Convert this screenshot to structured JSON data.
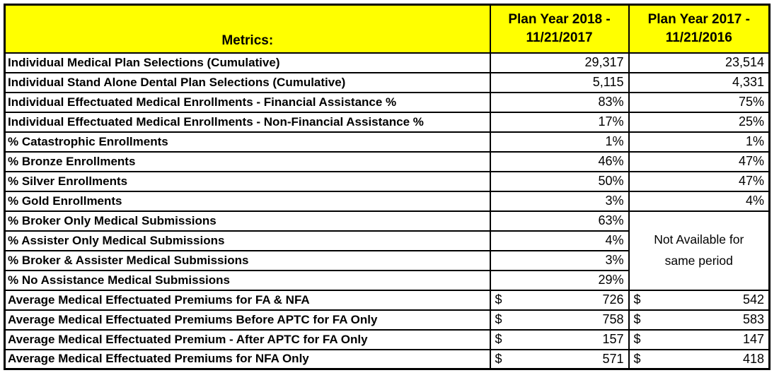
{
  "colors": {
    "header_bg": "#ffff00",
    "border": "#000000",
    "text": "#000000",
    "cell_bg": "#ffffff"
  },
  "table": {
    "currency_symbol": "$",
    "header": {
      "metrics": "Metrics:",
      "col_2018": "Plan Year 2018 -\n11/21/2017",
      "col_2017": "Plan Year 2017 -\n11/21/2016"
    },
    "merged_note": "Not Available for same period",
    "rows": [
      {
        "label": "Individual Medical Plan Selections (Cumulative)",
        "py2018": "29,317",
        "py2017": "23,514"
      },
      {
        "label": "Individual Stand Alone Dental Plan Selections (Cumulative)",
        "py2018": "5,115",
        "py2017": "4,331"
      },
      {
        "label": "Individual Effectuated Medical Enrollments - Financial Assistance %",
        "py2018": "83%",
        "py2017": "75%"
      },
      {
        "label": "Individual Effectuated Medical Enrollments - Non-Financial Assistance %",
        "py2018": "17%",
        "py2017": "25%"
      },
      {
        "label": "% Catastrophic Enrollments",
        "py2018": "1%",
        "py2017": "1%"
      },
      {
        "label": "% Bronze Enrollments",
        "py2018": "46%",
        "py2017": "47%"
      },
      {
        "label": "% Silver Enrollments",
        "py2018": "50%",
        "py2017": "47%"
      },
      {
        "label": "% Gold Enrollments",
        "py2018": "3%",
        "py2017": "4%"
      },
      {
        "label": "% Broker Only Medical Submissions",
        "py2018": "63%",
        "py2017": null
      },
      {
        "label": "% Assister Only Medical Submissions",
        "py2018": "4%",
        "py2017": null
      },
      {
        "label": "% Broker & Assister Medical Submissions",
        "py2018": "3%",
        "py2017": null
      },
      {
        "label": "% No Assistance Medical Submissions",
        "py2018": "29%",
        "py2017": null
      },
      {
        "label": "Average Medical Effectuated Premiums for FA & NFA",
        "py2018": "726",
        "py2017": "542",
        "currency": true
      },
      {
        "label": "Average Medical Effectuated Premiums Before APTC for FA Only",
        "py2018": "758",
        "py2017": "583",
        "currency": true
      },
      {
        "label": "Average Medical Effectuated Premium - After APTC for FA Only",
        "py2018": "157",
        "py2017": "147",
        "currency": true
      },
      {
        "label": "Average Medical Effectuated Premiums for NFA Only",
        "py2018": "571",
        "py2017": "418",
        "currency": true
      }
    ]
  }
}
